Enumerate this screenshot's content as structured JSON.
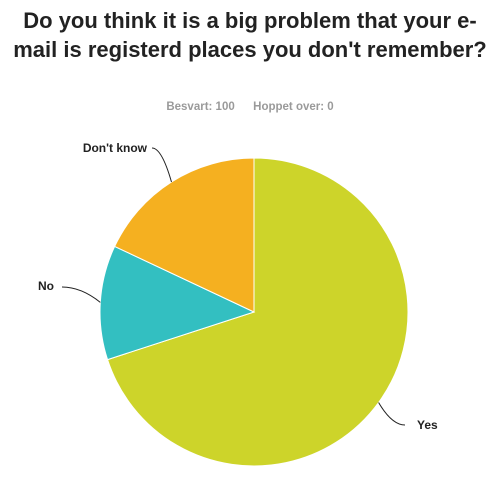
{
  "title": "Do you think it is a big problem that your e-mail is registerd places you don't remember?",
  "stats": {
    "answered_label": "Besvart: 100",
    "skipped_label": "Hoppet over: 0"
  },
  "colors": {
    "yes": "#cdd42a",
    "no": "#33bfc1",
    "dont_know": "#f5b020"
  },
  "chart_data": {
    "type": "pie",
    "title": "Do you think it is a big problem that your e-mail is registerd places you don't remember?",
    "categories": [
      "Yes",
      "No",
      "Don't know"
    ],
    "values": [
      70,
      12,
      18
    ],
    "start_angle_deg": 0,
    "direction": "clockwise",
    "legend": "none",
    "labels": "outside with leader lines"
  }
}
